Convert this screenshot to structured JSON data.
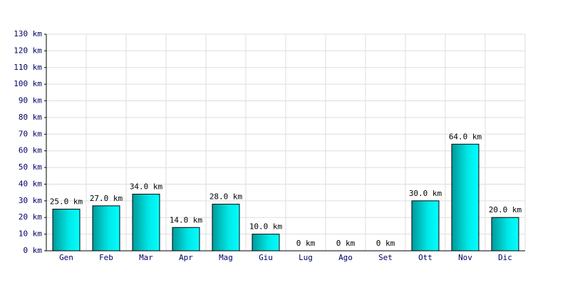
{
  "chart_data": {
    "type": "bar",
    "categories": [
      "Gen",
      "Feb",
      "Mar",
      "Apr",
      "Mag",
      "Giu",
      "Lug",
      "Ago",
      "Set",
      "Ott",
      "Nov",
      "Dic"
    ],
    "values": [
      25,
      27,
      34,
      14,
      28,
      10,
      0,
      0,
      0,
      30,
      64,
      20
    ],
    "value_labels": [
      "25.0 km",
      "27.0 km",
      "34.0 km",
      "14.0 km",
      "28.0 km",
      "10.0 km",
      "0 km",
      "0 km",
      "0 km",
      "30.0 km",
      "64.0 km",
      "20.0 km"
    ],
    "color": "#00e0e0",
    "ylim": [
      0,
      130
    ],
    "yticks": [
      {
        "value": 0,
        "label": "0 km"
      },
      {
        "value": 10,
        "label": "10 km"
      },
      {
        "value": 20,
        "label": "20 km"
      },
      {
        "value": 30,
        "label": "30 km"
      },
      {
        "value": 40,
        "label": "40 km"
      },
      {
        "value": 50,
        "label": "50 km"
      },
      {
        "value": 60,
        "label": "60 km"
      },
      {
        "value": 70,
        "label": "70 km"
      },
      {
        "value": 80,
        "label": "80 km"
      },
      {
        "value": 90,
        "label": "90 km"
      },
      {
        "value": 100,
        "label": "100 km"
      },
      {
        "value": 110,
        "label": "110 km"
      },
      {
        "value": 120,
        "label": "120 km"
      },
      {
        "value": 130,
        "label": "130 km"
      }
    ],
    "grid": true
  }
}
